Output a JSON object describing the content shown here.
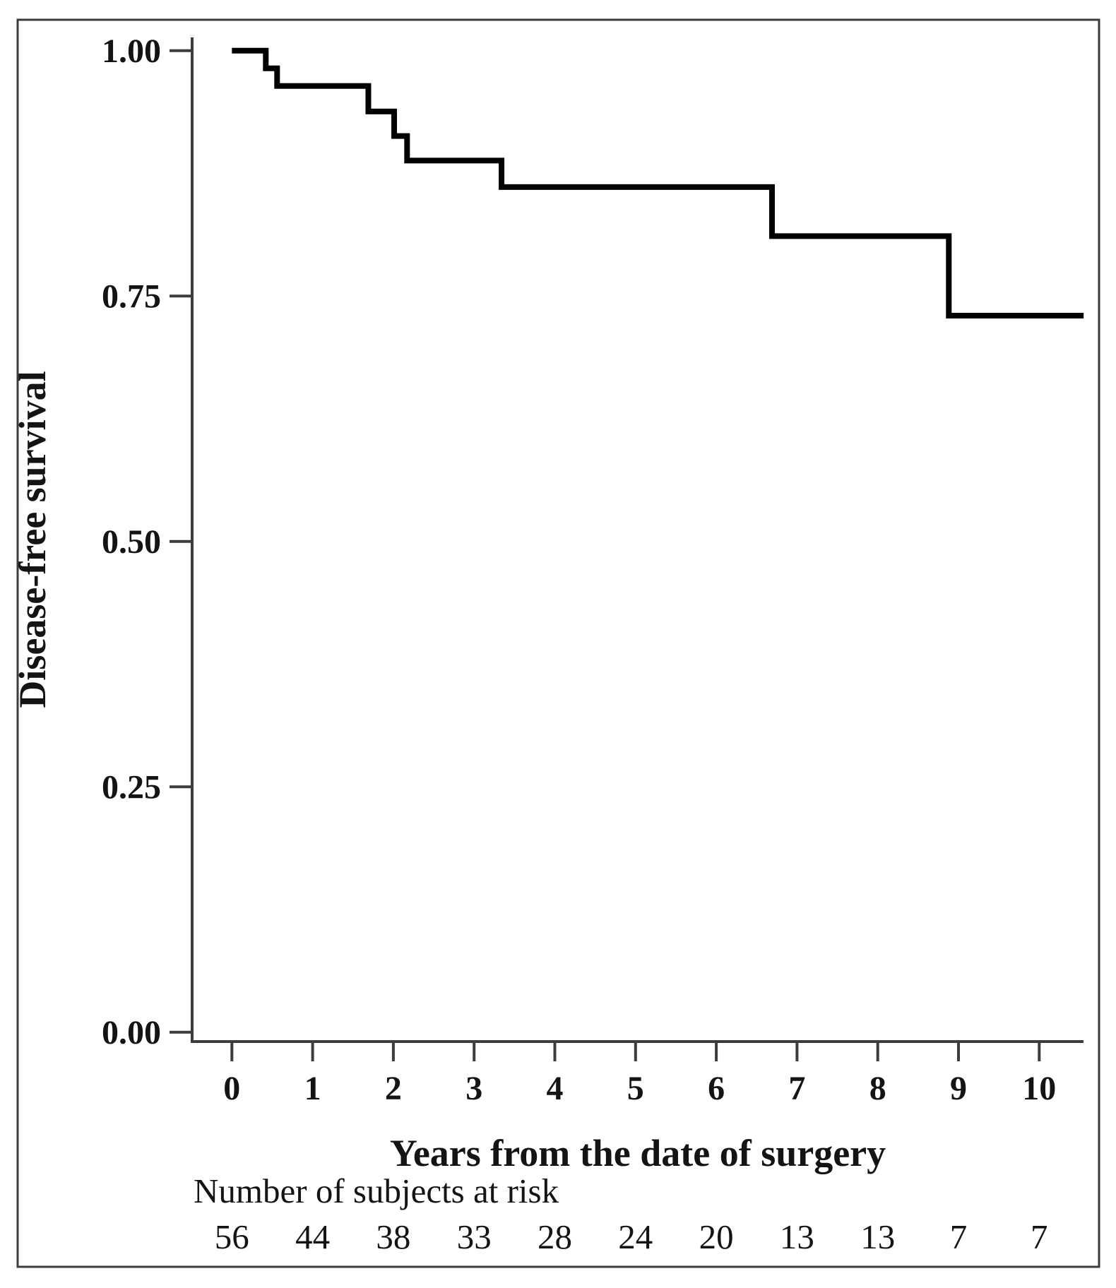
{
  "figure": {
    "background": "#ffffff",
    "border_color": "#3c3c3c",
    "axis_color": "#3c3c3c",
    "curve_color": "#000000",
    "text_color": "#141414"
  },
  "chart_data": {
    "type": "line",
    "subtype": "kaplan-meier-step-curve",
    "title": "",
    "xlabel": "Years from the date of surgery",
    "ylabel": "Disease-free survival",
    "xlim": [
      0,
      10.55
    ],
    "ylim": [
      0.0,
      1.0
    ],
    "grid": false,
    "legend": "none",
    "xticks": [
      {
        "value": 0,
        "label": "0"
      },
      {
        "value": 1,
        "label": "1"
      },
      {
        "value": 2,
        "label": "2"
      },
      {
        "value": 3,
        "label": "3"
      },
      {
        "value": 4,
        "label": "4"
      },
      {
        "value": 5,
        "label": "5"
      },
      {
        "value": 6,
        "label": "6"
      },
      {
        "value": 7,
        "label": "7"
      },
      {
        "value": 8,
        "label": "8"
      },
      {
        "value": 9,
        "label": "9"
      },
      {
        "value": 10,
        "label": "10"
      }
    ],
    "yticks": [
      {
        "value": 1.0,
        "label": "1.00"
      },
      {
        "value": 0.75,
        "label": "0.75"
      },
      {
        "value": 0.5,
        "label": "0.50"
      },
      {
        "value": 0.25,
        "label": "0.25"
      },
      {
        "value": 0.0,
        "label": "0.00"
      }
    ],
    "series": [
      {
        "name": "Disease-free survival",
        "color": "#000000",
        "steps": [
          {
            "t": 0.0,
            "s": 1.0
          },
          {
            "t": 0.42,
            "s": 0.982
          },
          {
            "t": 0.56,
            "s": 0.964
          },
          {
            "t": 1.69,
            "s": 0.938
          },
          {
            "t": 2.01,
            "s": 0.913
          },
          {
            "t": 2.17,
            "s": 0.888
          },
          {
            "t": 3.34,
            "s": 0.861
          },
          {
            "t": 6.69,
            "s": 0.811
          },
          {
            "t": 8.88,
            "s": 0.73
          }
        ],
        "end_t": 10.55
      }
    ],
    "risk_table": {
      "label": "Number of subjects at risk",
      "times": [
        0,
        1,
        2,
        3,
        4,
        5,
        6,
        7,
        8,
        9,
        10
      ],
      "counts": [
        56,
        44,
        38,
        33,
        28,
        24,
        20,
        13,
        13,
        7,
        7
      ]
    }
  }
}
